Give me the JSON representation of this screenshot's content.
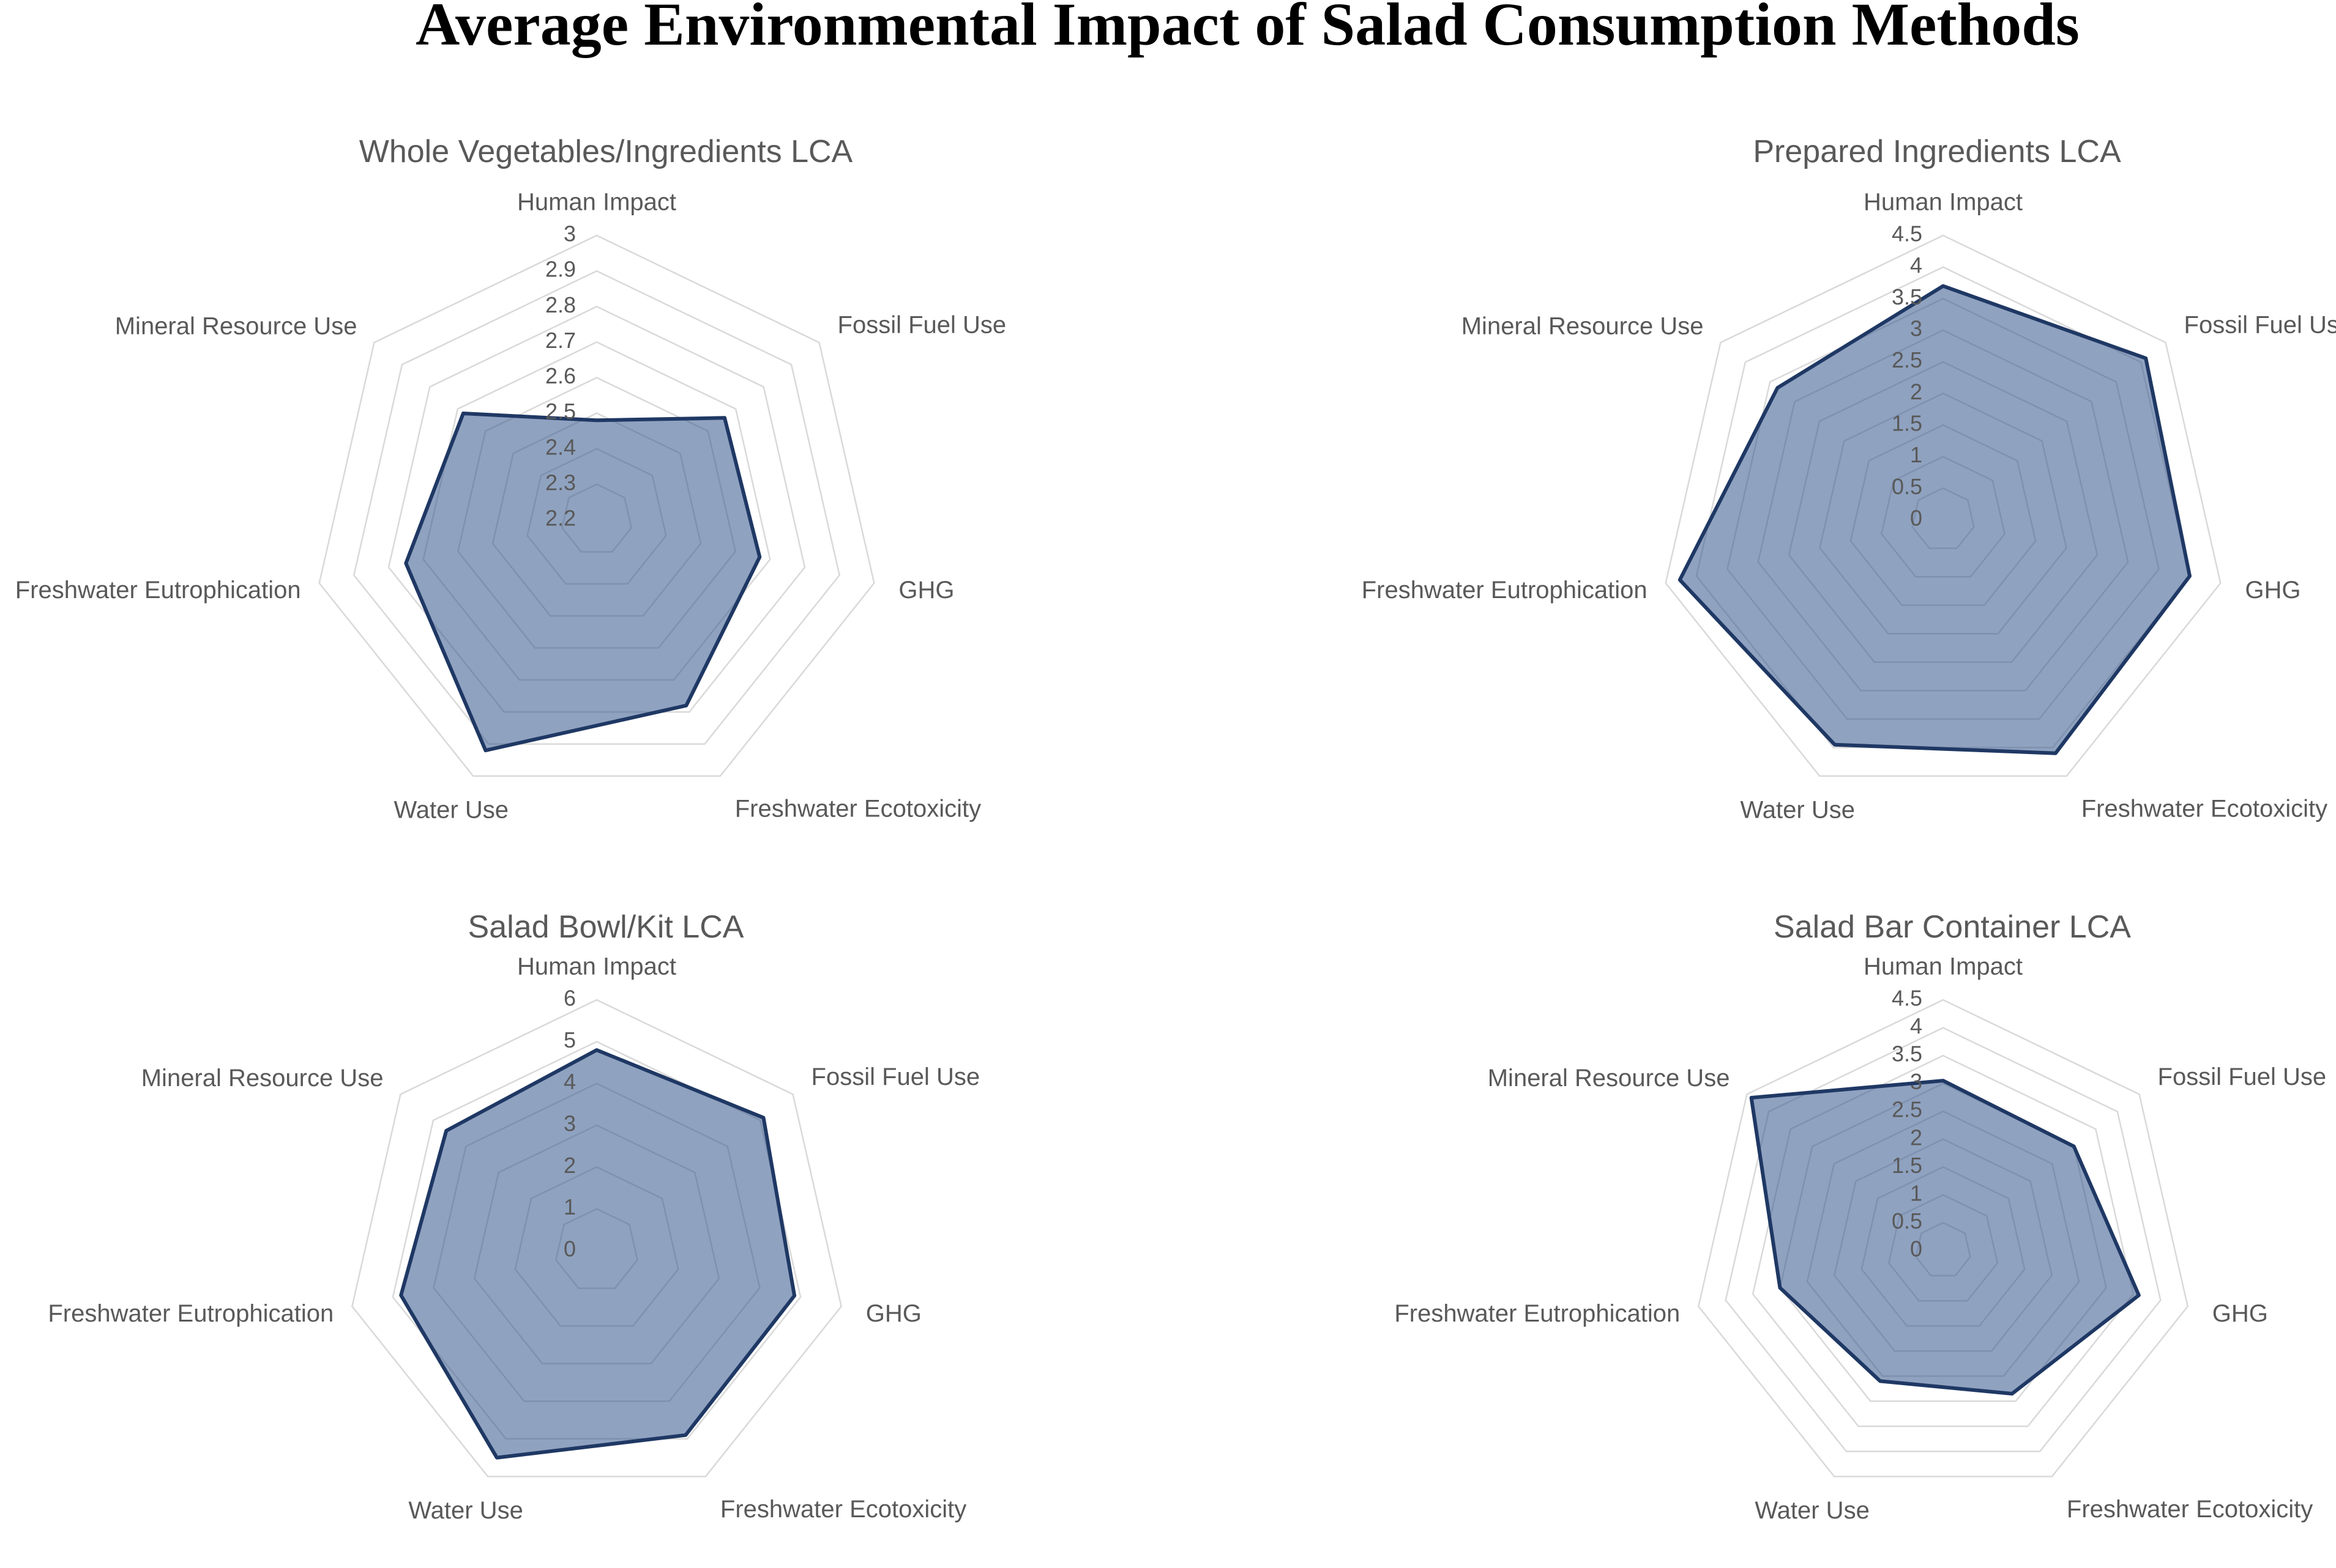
{
  "page_title": "Average Environmental Impact of Salad Consumption Methods",
  "colors": {
    "polygon_fill": "#33558C",
    "polygon_fill_opacity": 0.55,
    "polygon_stroke": "#1F3864",
    "grid_line": "#D9D9D9",
    "label_text": "#595959",
    "title_text": "#000000"
  },
  "chart_data": [
    {
      "type": "radar",
      "title": "Whole Vegetables/Ingredients LCA",
      "categories": [
        "Human Impact",
        "Fossil Fuel Use",
        "GHG",
        "Freshwater Ecotoxicity",
        "Water Use",
        "Freshwater Eutrophication",
        "Mineral Resource Use"
      ],
      "values": [
        2.48,
        2.66,
        2.67,
        2.78,
        2.92,
        2.75,
        2.68
      ],
      "axis_min": 2.2,
      "axis_max": 3.0,
      "axis_step": 0.1,
      "tick_labels": [
        "3",
        "2.9",
        "2.8",
        "2.7",
        "2.6",
        "2.5",
        "2.4",
        "2.3",
        "2.2"
      ],
      "grid": true,
      "legend": "none"
    },
    {
      "type": "radar",
      "title": "Prepared Ingredients LCA",
      "categories": [
        "Human Impact",
        "Fossil Fuel Use",
        "GHG",
        "Freshwater Ecotoxicity",
        "Water Use",
        "Freshwater Eutrophication",
        "Mineral Resource Use"
      ],
      "values": [
        3.7,
        4.1,
        4.0,
        4.1,
        3.95,
        4.27,
        3.35
      ],
      "axis_min": 0,
      "axis_max": 4.5,
      "axis_step": 0.5,
      "tick_labels": [
        "4.5",
        "4",
        "3.5",
        "3",
        "2.5",
        "2",
        "1.5",
        "1",
        "0.5",
        "0"
      ],
      "grid": true,
      "legend": "none"
    },
    {
      "type": "radar",
      "title": "Salad Bowl/Kit LCA",
      "categories": [
        "Human Impact",
        "Fossil Fuel Use",
        "GHG",
        "Freshwater Ecotoxicity",
        "Water Use",
        "Freshwater Eutrophication",
        "Mineral Resource Use"
      ],
      "values": [
        4.8,
        5.1,
        4.85,
        4.9,
        5.5,
        4.8,
        4.6
      ],
      "axis_min": 0,
      "axis_max": 6,
      "axis_step": 1,
      "tick_labels": [
        "6",
        "5",
        "4",
        "3",
        "2",
        "1",
        "0"
      ],
      "grid": true,
      "legend": "none"
    },
    {
      "type": "radar",
      "title": "Salad Bar Container LCA",
      "categories": [
        "Human Impact",
        "Fossil Fuel Use",
        "GHG",
        "Freshwater Ecotoxicity",
        "Water Use",
        "Freshwater Eutrophication",
        "Mineral Resource Use"
      ],
      "values": [
        3.05,
        3.0,
        3.6,
        2.85,
        2.6,
        3.0,
        4.4
      ],
      "axis_min": 0,
      "axis_max": 4.5,
      "axis_step": 0.5,
      "tick_labels": [
        "4.5",
        "4",
        "3.5",
        "3",
        "2.5",
        "2",
        "1.5",
        "1",
        "0.5",
        "0"
      ],
      "grid": true,
      "legend": "none"
    }
  ]
}
